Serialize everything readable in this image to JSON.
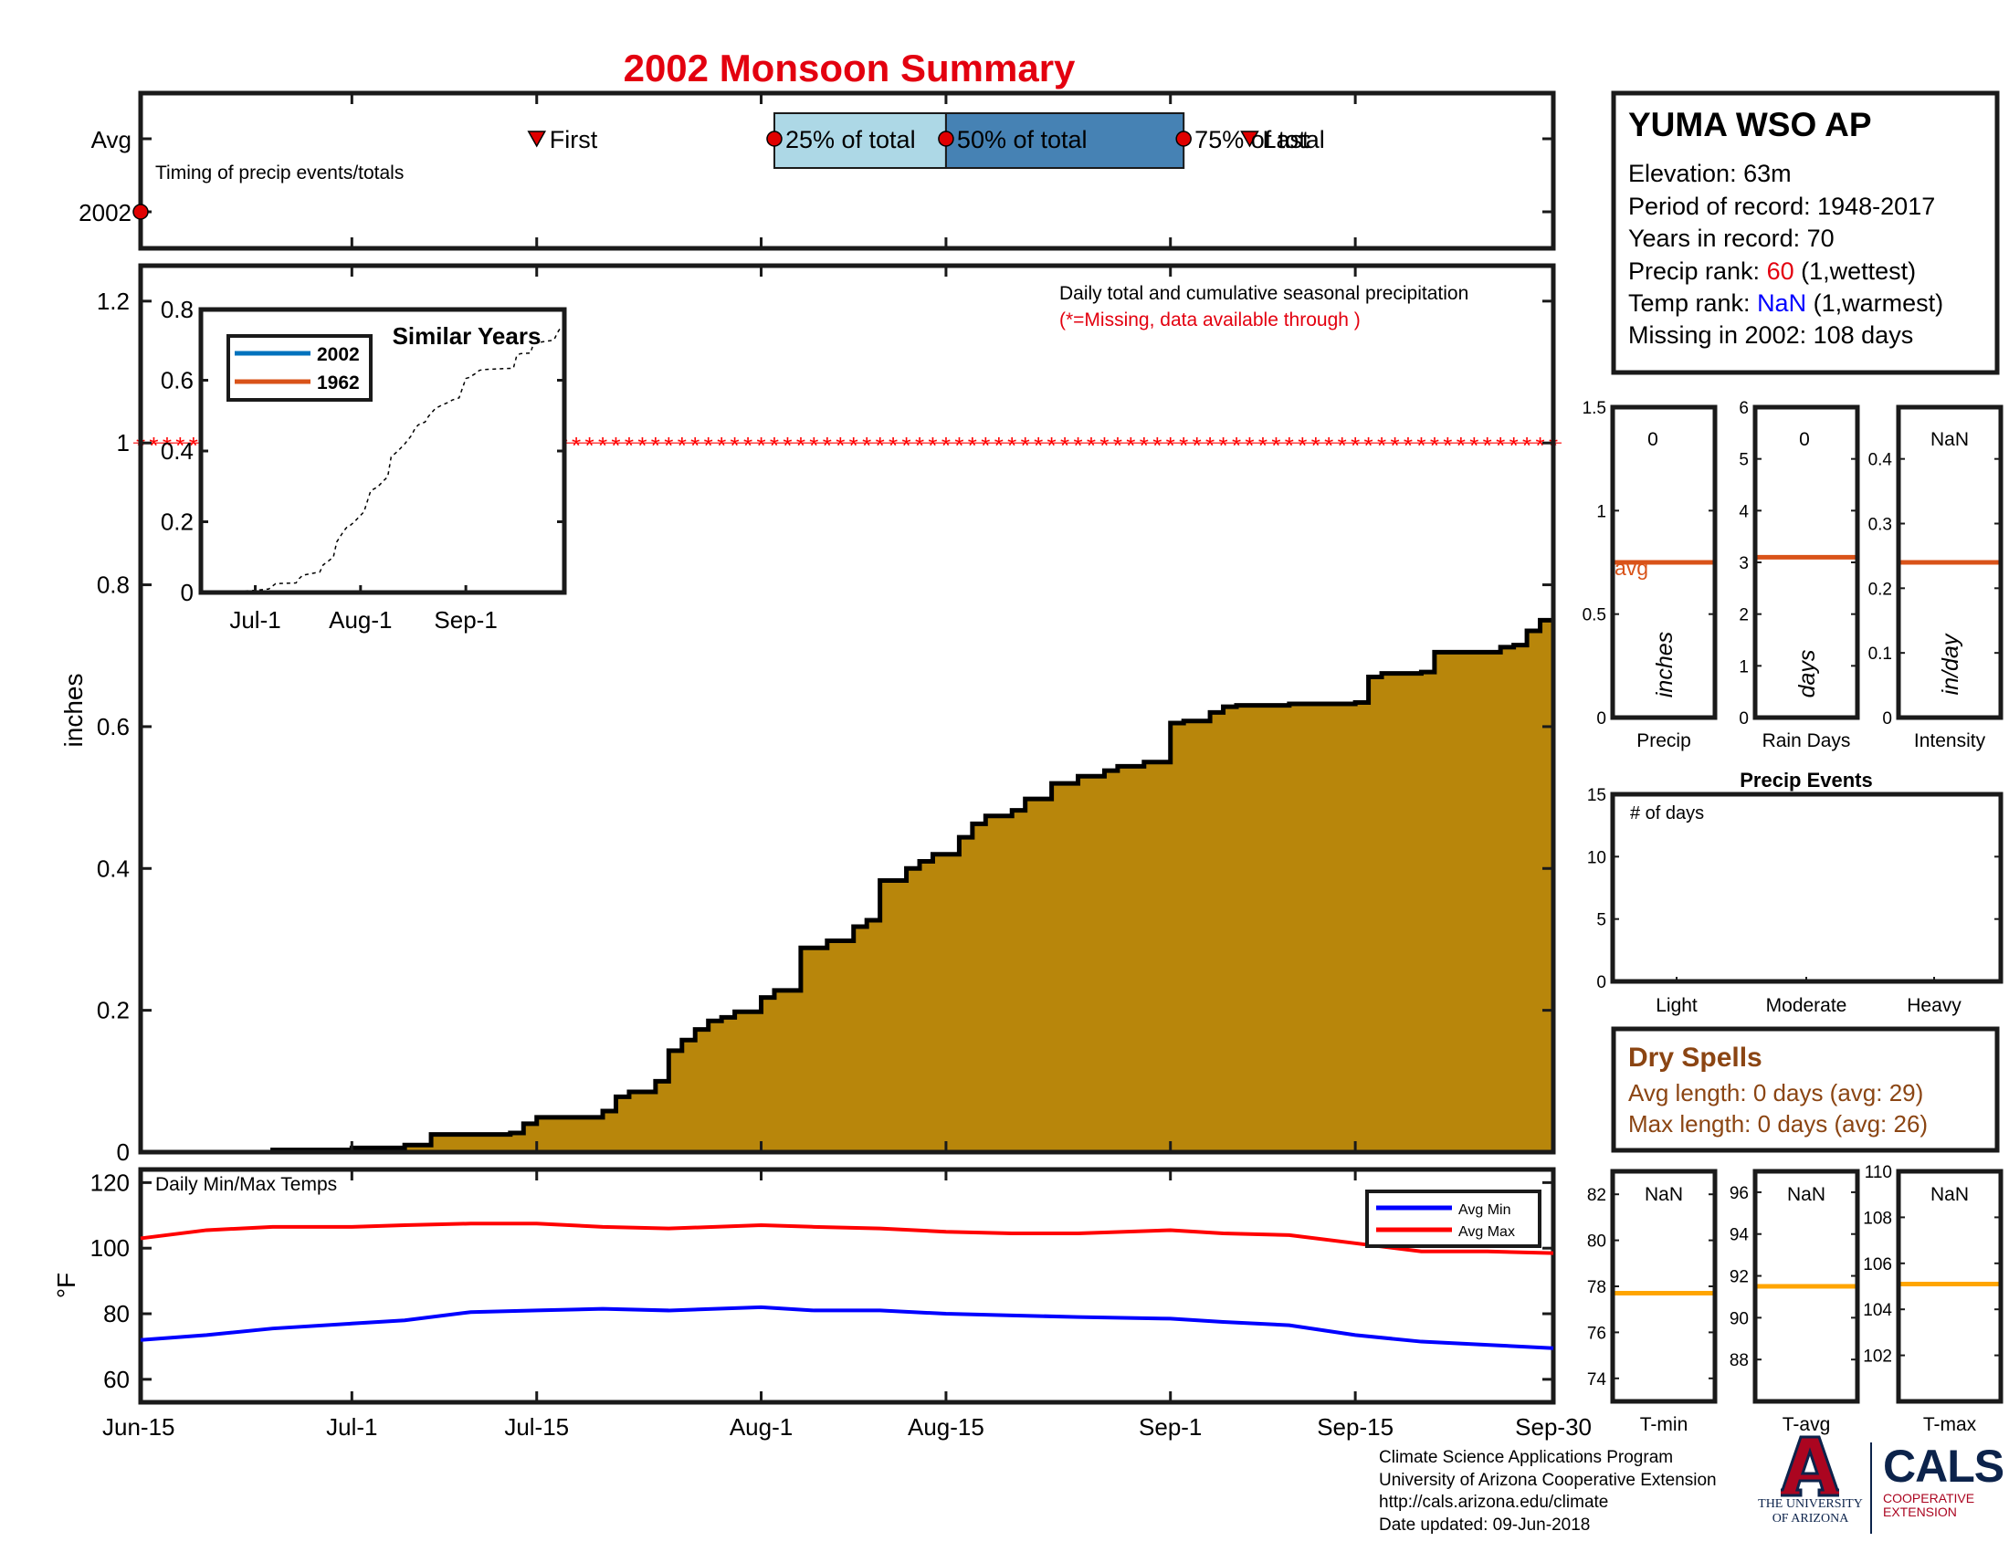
{
  "title": "2002 Monsoon Summary",
  "timing": {
    "caption": "Timing of precip events/totals",
    "ylabels": [
      "Avg",
      "2002"
    ],
    "first_label": "First",
    "last_label": "Last",
    "p25_label": "25% of total",
    "p50_label": "50% of total",
    "p75_label": "75% of total",
    "avg_first": "Jul-15",
    "avg_last": "Sep-7",
    "avg_25": "Aug-2",
    "avg_50": "Aug-15",
    "avg_75": "Sep-2",
    "year_first": "Jun-15"
  },
  "station": {
    "name": "YUMA WSO AP",
    "elevation": "Elevation: 63m",
    "period": "Period of record: 1948-2017",
    "years": "Years in record: 70",
    "precip_rank_label": "Precip rank: ",
    "precip_rank_value": "60",
    "precip_rank_suffix": " (1,wettest)",
    "temp_rank_label": "Temp rank: ",
    "temp_rank_value": "NaN",
    "temp_rank_suffix": " (1,warmest)",
    "missing": "Missing in 2002: 108 days"
  },
  "main": {
    "ylabel": "inches",
    "note1": "Daily total and cumulative seasonal precipitation",
    "note2": "(*=Missing, data available through )",
    "missing_level": 1
  },
  "inset": {
    "title": "Similar Years",
    "legend": [
      "2002",
      "1962"
    ]
  },
  "summary_boxes": {
    "precip": {
      "label": "Precip",
      "value": "0",
      "unit": "inches",
      "avg_label": "avg"
    },
    "rain_days": {
      "label": "Rain Days",
      "value": "0",
      "unit": "days"
    },
    "intensity": {
      "label": "Intensity",
      "value": "NaN",
      "unit": "in/day"
    }
  },
  "events": {
    "title": "Precip Events",
    "note": "# of days",
    "categories": [
      "Light",
      "Moderate",
      "Heavy"
    ]
  },
  "dry_spells": {
    "title": "Dry Spells",
    "avg": "Avg length: 0 days (avg: 29)",
    "max": "Max length: 0 days (avg: 26)"
  },
  "temps": {
    "caption": "Daily Min/Max Temps",
    "ylabel": "°F",
    "legend": [
      "Avg Min",
      "Avg Max"
    ]
  },
  "temp_boxes": {
    "tmin": {
      "label": "T-min",
      "value": "NaN"
    },
    "tavg": {
      "label": "T-avg",
      "value": "NaN"
    },
    "tmax": {
      "label": "T-max",
      "value": "NaN"
    }
  },
  "footer": {
    "line1": "Climate Science Applications Program",
    "line2": "University of Arizona Cooperative Extension",
    "line3": "http://cals.arizona.edu/climate",
    "line4": " Date updated: 09-Jun-2018"
  },
  "logos": {
    "ua_line1": "THE UNIVERSITY",
    "ua_line2": "OF ARIZONA",
    "cals": "CALS",
    "cals_sub1": "COOPERATIVE",
    "cals_sub2": "EXTENSION"
  },
  "colors": {
    "title": "#e3000f",
    "fill": "#b8860b",
    "avg_line": "#d95319",
    "series_2002": "#0072bd",
    "series_1962": "#d95319",
    "tmin": "#0000ff",
    "tmax": "#ff0000",
    "temp_avg": "#ffa500",
    "dry": "#8b4513",
    "p25_box": "#add8e6",
    "p50_box": "#4682b4",
    "missing": "#ff0000"
  },
  "chart_data": [
    {
      "type": "area",
      "name": "cumulative-precip",
      "x_ticks": [
        "Jun-15",
        "Jul-1",
        "Jul-15",
        "Aug-1",
        "Aug-15",
        "Sep-1",
        "Sep-15",
        "Sep-30"
      ],
      "xlim": [
        "Jun-15",
        "Sep-30"
      ],
      "ylim": [
        0,
        1.25
      ],
      "y_ticks": [
        0,
        0.2,
        0.4,
        0.6,
        0.8,
        1,
        1.2
      ],
      "ylabel": "inches",
      "x": [
        "Jun-15",
        "Jun-25",
        "Jul-1",
        "Jul-5",
        "Jul-7",
        "Jul-13",
        "Jul-14",
        "Jul-15",
        "Jul-20",
        "Jul-21",
        "Jul-22",
        "Jul-24",
        "Jul-25",
        "Jul-26",
        "Jul-27",
        "Jul-28",
        "Jul-29",
        "Jul-30",
        "Aug-1",
        "Aug-2",
        "Aug-4",
        "Aug-6",
        "Aug-8",
        "Aug-9",
        "Aug-10",
        "Aug-12",
        "Aug-13",
        "Aug-14",
        "Aug-16",
        "Aug-17",
        "Aug-18",
        "Aug-20",
        "Aug-21",
        "Aug-23",
        "Aug-25",
        "Aug-27",
        "Aug-28",
        "Aug-30",
        "Sep-1",
        "Sep-2",
        "Sep-4",
        "Sep-5",
        "Sep-6",
        "Sep-10",
        "Sep-15",
        "Sep-16",
        "Sep-17",
        "Sep-20",
        "Sep-21",
        "Sep-26",
        "Sep-27",
        "Sep-28",
        "Sep-29"
      ],
      "y": [
        0,
        0.003,
        0.006,
        0.01,
        0.025,
        0.027,
        0.04,
        0.049,
        0.058,
        0.078,
        0.085,
        0.1,
        0.143,
        0.158,
        0.173,
        0.185,
        0.19,
        0.198,
        0.218,
        0.228,
        0.288,
        0.298,
        0.318,
        0.327,
        0.383,
        0.4,
        0.41,
        0.42,
        0.444,
        0.463,
        0.474,
        0.482,
        0.498,
        0.52,
        0.53,
        0.538,
        0.544,
        0.55,
        0.605,
        0.608,
        0.62,
        0.628,
        0.63,
        0.632,
        0.634,
        0.67,
        0.675,
        0.677,
        0.705,
        0.712,
        0.715,
        0.735,
        0.75
      ]
    },
    {
      "type": "line",
      "name": "similar-years",
      "x_ticks": [
        "Jul-1",
        "Aug-1",
        "Sep-1"
      ],
      "ylim": [
        0,
        0.8
      ],
      "y_ticks": [
        0,
        0.2,
        0.4,
        0.6,
        0.8
      ],
      "series": [
        {
          "name": "2002",
          "x": [
            "Jun-15",
            "Sep-30"
          ],
          "y": [
            0,
            0
          ]
        },
        {
          "name": "1962",
          "x": [
            "Jun-15",
            "Sep-30"
          ],
          "y": [
            0,
            0
          ]
        },
        {
          "x": [
            "Jun-15",
            "Jun-25",
            "Jul-1",
            "Jul-5",
            "Jul-7",
            "Jul-13",
            "Jul-14",
            "Jul-15",
            "Jul-20",
            "Jul-21",
            "Jul-22",
            "Jul-24",
            "Jul-25",
            "Jul-26",
            "Jul-27",
            "Jul-28",
            "Jul-29",
            "Jul-30",
            "Aug-1",
            "Aug-2",
            "Aug-4",
            "Aug-6",
            "Aug-8",
            "Aug-9",
            "Aug-10",
            "Aug-12",
            "Aug-13",
            "Aug-14",
            "Aug-16",
            "Aug-17",
            "Aug-18",
            "Aug-20",
            "Aug-21",
            "Aug-23",
            "Aug-25",
            "Aug-27",
            "Aug-28",
            "Aug-30",
            "Sep-1",
            "Sep-2",
            "Sep-4",
            "Sep-5",
            "Sep-6",
            "Sep-10",
            "Sep-15",
            "Sep-16",
            "Sep-17",
            "Sep-20",
            "Sep-21",
            "Sep-26",
            "Sep-27",
            "Sep-28",
            "Sep-29"
          ],
          "y": [
            0,
            0.003,
            0.006,
            0.01,
            0.025,
            0.027,
            0.04,
            0.049,
            0.058,
            0.078,
            0.085,
            0.1,
            0.143,
            0.158,
            0.173,
            0.185,
            0.19,
            0.198,
            0.218,
            0.228,
            0.288,
            0.298,
            0.318,
            0.327,
            0.383,
            0.4,
            0.41,
            0.42,
            0.444,
            0.463,
            0.474,
            0.482,
            0.498,
            0.52,
            0.53,
            0.538,
            0.544,
            0.55,
            0.605,
            0.608,
            0.62,
            0.628,
            0.63,
            0.632,
            0.634,
            0.67,
            0.675,
            0.677,
            0.705,
            0.712,
            0.715,
            0.735,
            0.75
          ]
        }
      ]
    },
    {
      "type": "line",
      "name": "daily-temps",
      "x_ticks": [
        "Jun-15",
        "Jul-1",
        "Jul-15",
        "Aug-1",
        "Aug-15",
        "Sep-1",
        "Sep-15",
        "Sep-30"
      ],
      "ylim": [
        53,
        124
      ],
      "y_ticks": [
        60,
        80,
        100,
        120
      ],
      "series": [
        {
          "name": "Avg Max",
          "x": [
            "Jun-15",
            "Jun-20",
            "Jun-25",
            "Jul-1",
            "Jul-5",
            "Jul-10",
            "Jul-15",
            "Jul-20",
            "Jul-25",
            "Aug-1",
            "Aug-5",
            "Aug-10",
            "Aug-15",
            "Aug-20",
            "Aug-25",
            "Sep-1",
            "Sep-5",
            "Sep-10",
            "Sep-15",
            "Sep-20",
            "Sep-25",
            "Sep-30"
          ],
          "y": [
            103,
            105.5,
            106.5,
            106.5,
            107,
            107.5,
            107.5,
            106.5,
            106,
            107,
            106.5,
            106,
            105,
            104.5,
            104.5,
            105.5,
            104.5,
            104,
            101.5,
            99,
            99,
            98.5
          ]
        },
        {
          "name": "Avg Min",
          "x": [
            "Jun-15",
            "Jun-20",
            "Jun-25",
            "Jul-1",
            "Jul-5",
            "Jul-10",
            "Jul-15",
            "Jul-20",
            "Jul-25",
            "Aug-1",
            "Aug-5",
            "Aug-10",
            "Aug-15",
            "Aug-20",
            "Aug-25",
            "Sep-1",
            "Sep-5",
            "Sep-10",
            "Sep-15",
            "Sep-20",
            "Sep-25",
            "Sep-30"
          ],
          "y": [
            72,
            73.5,
            75.5,
            77,
            78,
            80.5,
            81,
            81.5,
            81,
            82,
            81,
            81,
            80,
            79.5,
            79,
            78.5,
            77.5,
            76.5,
            73.5,
            71.5,
            70.5,
            69.5
          ]
        }
      ]
    },
    {
      "type": "bar",
      "name": "precip-summary",
      "categories": [
        "Precip",
        "Rain Days",
        "Intensity"
      ],
      "values": [
        0,
        0,
        null
      ],
      "averages": [
        0.75,
        3.1,
        0.24
      ],
      "ylims": [
        [
          0,
          1.5
        ],
        [
          0,
          6
        ],
        [
          0,
          0.48
        ]
      ],
      "y_ticks": [
        [
          0,
          0.5,
          1,
          1.5
        ],
        [
          0,
          1,
          2,
          3,
          4,
          5,
          6
        ],
        [
          0,
          0.1,
          0.2,
          0.3,
          0.4
        ]
      ]
    },
    {
      "type": "bar",
      "name": "precip-events",
      "categories": [
        "Light",
        "Moderate",
        "Heavy"
      ],
      "values": [
        0,
        0,
        0
      ],
      "ylim": [
        0,
        15
      ],
      "y_ticks": [
        0,
        5,
        10,
        15
      ]
    },
    {
      "type": "bar",
      "name": "temp-summary",
      "categories": [
        "T-min",
        "T-avg",
        "T-max"
      ],
      "values": [
        null,
        null,
        null
      ],
      "averages": [
        77.7,
        91.5,
        105.1
      ],
      "ylims": [
        [
          73,
          83
        ],
        [
          86,
          97
        ],
        [
          100,
          110
        ]
      ],
      "y_ticks": [
        [
          74,
          76,
          78,
          80,
          82
        ],
        [
          88,
          90,
          92,
          94,
          96
        ],
        [
          102,
          104,
          106,
          108,
          110
        ]
      ]
    }
  ]
}
